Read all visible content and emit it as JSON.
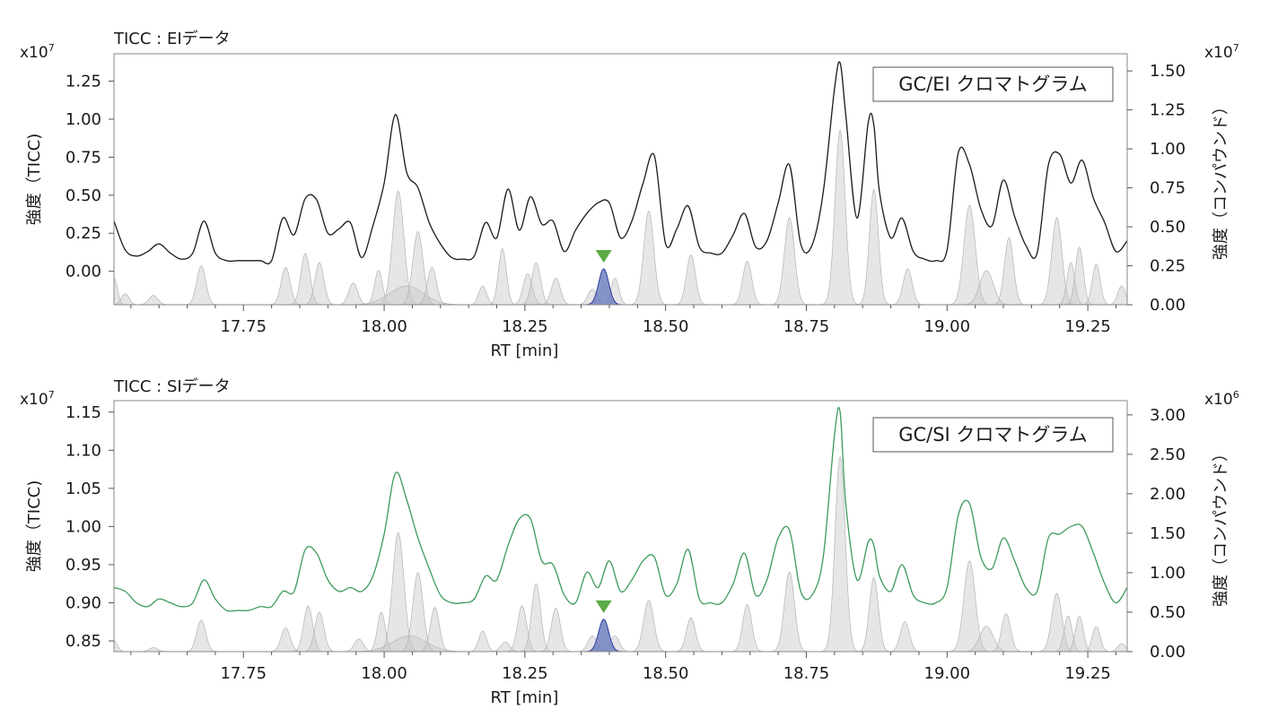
{
  "chart_data": [
    {
      "type": "line",
      "header_label": "TICC : EIデータ",
      "title": "GC/EI クロマトグラム",
      "xlabel": "RT [min]",
      "ylabel_left": "強度（TICC)",
      "ylabel_right": "強度（コンパウンド）",
      "y_left_exponent": "x10",
      "y_left_exponent_power": "7",
      "y_right_exponent": "x10",
      "y_right_exponent_power": "7",
      "xlim": [
        17.52,
        19.32
      ],
      "ylim_left": [
        -0.22,
        1.43
      ],
      "ylim_right": [
        0.0,
        1.61
      ],
      "x_ticks": [
        17.75,
        18.0,
        18.25,
        18.5,
        18.75,
        19.0,
        19.25
      ],
      "x_tick_labels": [
        "17.75",
        "18.00",
        "18.25",
        "18.50",
        "18.75",
        "19.00",
        "19.25"
      ],
      "y_left_ticks": [
        0.0,
        0.25,
        0.5,
        0.75,
        1.0,
        1.25
      ],
      "y_left_tick_labels": [
        "0.00",
        "0.25",
        "0.50",
        "0.75",
        "1.00",
        "1.25"
      ],
      "y_right_ticks": [
        0.0,
        0.25,
        0.5,
        0.75,
        1.0,
        1.25,
        1.5
      ],
      "y_right_tick_labels": [
        "0.00",
        "0.25",
        "0.50",
        "0.75",
        "1.00",
        "1.25",
        "1.50"
      ],
      "marker_rt": 18.39,
      "colors": {
        "ticc": "#1a1a1a",
        "compound": "#c8c8c8",
        "highlight": "#7080c0",
        "marker": "#5aaa46"
      },
      "ticc_series": {
        "x": [
          17.52,
          17.54,
          17.56,
          17.58,
          17.6,
          17.62,
          17.64,
          17.66,
          17.68,
          17.7,
          17.72,
          17.74,
          17.76,
          17.78,
          17.8,
          17.82,
          17.84,
          17.86,
          17.88,
          17.9,
          17.92,
          17.94,
          17.96,
          17.98,
          18.0,
          18.02,
          18.04,
          18.06,
          18.08,
          18.1,
          18.12,
          18.14,
          18.16,
          18.18,
          18.2,
          18.22,
          18.24,
          18.26,
          18.28,
          18.3,
          18.32,
          18.34,
          18.36,
          18.38,
          18.4,
          18.42,
          18.44,
          18.46,
          18.48,
          18.5,
          18.52,
          18.54,
          18.56,
          18.58,
          18.6,
          18.62,
          18.64,
          18.66,
          18.68,
          18.7,
          18.72,
          18.74,
          18.76,
          18.78,
          18.8,
          18.81,
          18.82,
          18.84,
          18.86,
          18.87,
          18.88,
          18.9,
          18.92,
          18.94,
          18.96,
          18.98,
          19.0,
          19.02,
          19.04,
          19.06,
          19.08,
          19.1,
          19.12,
          19.14,
          19.16,
          19.18,
          19.2,
          19.22,
          19.24,
          19.26,
          19.28,
          19.3,
          19.32
        ],
        "y": [
          0.33,
          0.14,
          0.1,
          0.13,
          0.18,
          0.12,
          0.08,
          0.12,
          0.33,
          0.12,
          0.07,
          0.07,
          0.07,
          0.07,
          0.07,
          0.35,
          0.24,
          0.48,
          0.47,
          0.25,
          0.28,
          0.32,
          0.09,
          0.3,
          0.58,
          1.03,
          0.65,
          0.55,
          0.32,
          0.18,
          0.09,
          0.08,
          0.1,
          0.32,
          0.22,
          0.54,
          0.27,
          0.49,
          0.31,
          0.33,
          0.13,
          0.27,
          0.38,
          0.45,
          0.45,
          0.22,
          0.33,
          0.58,
          0.76,
          0.18,
          0.28,
          0.43,
          0.16,
          0.12,
          0.12,
          0.24,
          0.38,
          0.16,
          0.2,
          0.45,
          0.7,
          0.18,
          0.17,
          0.52,
          1.2,
          1.37,
          1.03,
          0.35,
          0.98,
          0.96,
          0.52,
          0.22,
          0.35,
          0.13,
          0.08,
          0.07,
          0.14,
          0.78,
          0.7,
          0.41,
          0.3,
          0.6,
          0.36,
          0.17,
          0.12,
          0.7,
          0.77,
          0.58,
          0.73,
          0.48,
          0.32,
          0.13,
          0.2
        ]
      },
      "compound_peaks": [
        {
          "rt": 17.52,
          "height": 0.17,
          "width": 0.006
        },
        {
          "rt": 17.54,
          "height": 0.07,
          "width": 0.007
        },
        {
          "rt": 17.59,
          "height": 0.06,
          "width": 0.008
        },
        {
          "rt": 17.675,
          "height": 0.25,
          "width": 0.008
        },
        {
          "rt": 17.825,
          "height": 0.24,
          "width": 0.008
        },
        {
          "rt": 17.86,
          "height": 0.33,
          "width": 0.008
        },
        {
          "rt": 17.885,
          "height": 0.27,
          "width": 0.008
        },
        {
          "rt": 17.945,
          "height": 0.14,
          "width": 0.008
        },
        {
          "rt": 17.99,
          "height": 0.22,
          "width": 0.007
        },
        {
          "rt": 18.025,
          "height": 0.73,
          "width": 0.01
        },
        {
          "rt": 18.04,
          "height": 0.12,
          "width": 0.03
        },
        {
          "rt": 18.06,
          "height": 0.47,
          "width": 0.009
        },
        {
          "rt": 18.085,
          "height": 0.24,
          "width": 0.008
        },
        {
          "rt": 18.175,
          "height": 0.12,
          "width": 0.007
        },
        {
          "rt": 18.21,
          "height": 0.36,
          "width": 0.007
        },
        {
          "rt": 18.255,
          "height": 0.2,
          "width": 0.008
        },
        {
          "rt": 18.27,
          "height": 0.27,
          "width": 0.008
        },
        {
          "rt": 18.305,
          "height": 0.17,
          "width": 0.008
        },
        {
          "rt": 18.37,
          "height": 0.1,
          "width": 0.008
        },
        {
          "rt": 18.39,
          "height": 0.23,
          "width": 0.009,
          "highlight": true
        },
        {
          "rt": 18.41,
          "height": 0.17,
          "width": 0.007
        },
        {
          "rt": 18.47,
          "height": 0.6,
          "width": 0.009
        },
        {
          "rt": 18.545,
          "height": 0.32,
          "width": 0.008
        },
        {
          "rt": 18.645,
          "height": 0.28,
          "width": 0.008
        },
        {
          "rt": 18.72,
          "height": 0.56,
          "width": 0.009
        },
        {
          "rt": 18.81,
          "height": 1.12,
          "width": 0.009
        },
        {
          "rt": 18.87,
          "height": 0.74,
          "width": 0.008
        },
        {
          "rt": 18.93,
          "height": 0.23,
          "width": 0.008
        },
        {
          "rt": 19.04,
          "height": 0.64,
          "width": 0.01
        },
        {
          "rt": 19.07,
          "height": 0.22,
          "width": 0.012
        },
        {
          "rt": 19.11,
          "height": 0.43,
          "width": 0.008
        },
        {
          "rt": 19.195,
          "height": 0.56,
          "width": 0.009
        },
        {
          "rt": 19.22,
          "height": 0.27,
          "width": 0.007
        },
        {
          "rt": 19.235,
          "height": 0.37,
          "width": 0.007
        },
        {
          "rt": 19.265,
          "height": 0.26,
          "width": 0.007
        },
        {
          "rt": 19.31,
          "height": 0.12,
          "width": 0.007
        }
      ]
    },
    {
      "type": "line",
      "header_label": "TICC : SIデータ",
      "title": "GC/SI クロマトグラム",
      "xlabel": "RT [min]",
      "ylabel_left": "強度（TICC)",
      "ylabel_right": "強度（コンパウンド）",
      "y_left_exponent": "x10",
      "y_left_exponent_power": "7",
      "y_right_exponent": "x10",
      "y_right_exponent_power": "6",
      "xlim": [
        17.52,
        19.32
      ],
      "ylim_left": [
        0.836,
        1.165
      ],
      "ylim_right": [
        0.0,
        3.18
      ],
      "x_ticks": [
        17.75,
        18.0,
        18.25,
        18.5,
        18.75,
        19.0,
        19.25
      ],
      "x_tick_labels": [
        "17.75",
        "18.00",
        "18.25",
        "18.50",
        "18.75",
        "19.00",
        "19.25"
      ],
      "y_left_ticks": [
        0.85,
        0.9,
        0.95,
        1.0,
        1.05,
        1.1,
        1.15
      ],
      "y_left_tick_labels": [
        "0.85",
        "0.90",
        "0.95",
        "1.00",
        "1.05",
        "1.10",
        "1.15"
      ],
      "y_right_ticks": [
        0.0,
        0.5,
        1.0,
        1.5,
        2.0,
        2.5,
        3.0
      ],
      "y_right_tick_labels": [
        "0.00",
        "0.50",
        "1.00",
        "1.50",
        "2.00",
        "2.50",
        "3.00"
      ],
      "marker_rt": 18.39,
      "colors": {
        "ticc": "#3d9a5c",
        "compound": "#c8c8c8",
        "highlight": "#7080c0",
        "marker": "#5aaa46"
      },
      "ticc_series": {
        "x": [
          17.52,
          17.54,
          17.56,
          17.58,
          17.6,
          17.62,
          17.64,
          17.66,
          17.68,
          17.7,
          17.72,
          17.74,
          17.76,
          17.78,
          17.8,
          17.82,
          17.84,
          17.86,
          17.88,
          17.9,
          17.92,
          17.94,
          17.96,
          17.98,
          18.0,
          18.02,
          18.04,
          18.06,
          18.08,
          18.1,
          18.12,
          18.14,
          18.16,
          18.18,
          18.2,
          18.22,
          18.24,
          18.26,
          18.28,
          18.3,
          18.32,
          18.34,
          18.36,
          18.38,
          18.4,
          18.42,
          18.44,
          18.46,
          18.48,
          18.5,
          18.52,
          18.54,
          18.56,
          18.58,
          18.6,
          18.62,
          18.64,
          18.66,
          18.68,
          18.7,
          18.72,
          18.74,
          18.76,
          18.78,
          18.8,
          18.81,
          18.82,
          18.84,
          18.86,
          18.87,
          18.88,
          18.9,
          18.92,
          18.94,
          18.96,
          18.98,
          19.0,
          19.02,
          19.04,
          19.06,
          19.08,
          19.1,
          19.12,
          19.14,
          19.16,
          19.18,
          19.2,
          19.22,
          19.24,
          19.26,
          19.28,
          19.3,
          19.32
        ],
        "y": [
          0.92,
          0.915,
          0.9,
          0.895,
          0.905,
          0.9,
          0.895,
          0.9,
          0.93,
          0.905,
          0.89,
          0.89,
          0.89,
          0.895,
          0.895,
          0.915,
          0.915,
          0.97,
          0.965,
          0.93,
          0.915,
          0.92,
          0.915,
          0.935,
          0.99,
          1.07,
          1.035,
          0.985,
          0.945,
          0.91,
          0.9,
          0.9,
          0.905,
          0.935,
          0.93,
          0.975,
          1.01,
          1.01,
          0.955,
          0.95,
          0.91,
          0.9,
          0.94,
          0.92,
          0.955,
          0.915,
          0.93,
          0.955,
          0.96,
          0.91,
          0.925,
          0.97,
          0.905,
          0.9,
          0.9,
          0.925,
          0.965,
          0.91,
          0.93,
          0.985,
          0.995,
          0.915,
          0.91,
          0.96,
          1.12,
          1.15,
          1.03,
          0.93,
          0.98,
          0.975,
          0.935,
          0.915,
          0.95,
          0.91,
          0.9,
          0.9,
          0.92,
          1.015,
          1.03,
          0.96,
          0.945,
          0.985,
          0.955,
          0.92,
          0.915,
          0.985,
          0.99,
          1.0,
          1.0,
          0.965,
          0.925,
          0.9,
          0.92
        ]
      },
      "compound_peaks": [
        {
          "rt": 17.52,
          "height": 0.14,
          "width": 0.006
        },
        {
          "rt": 17.59,
          "height": 0.05,
          "width": 0.008
        },
        {
          "rt": 17.675,
          "height": 0.4,
          "width": 0.008
        },
        {
          "rt": 17.825,
          "height": 0.3,
          "width": 0.008
        },
        {
          "rt": 17.865,
          "height": 0.58,
          "width": 0.008
        },
        {
          "rt": 17.885,
          "height": 0.5,
          "width": 0.008
        },
        {
          "rt": 17.955,
          "height": 0.16,
          "width": 0.008
        },
        {
          "rt": 17.995,
          "height": 0.5,
          "width": 0.007
        },
        {
          "rt": 18.025,
          "height": 1.51,
          "width": 0.01
        },
        {
          "rt": 18.045,
          "height": 0.2,
          "width": 0.03
        },
        {
          "rt": 18.06,
          "height": 1.0,
          "width": 0.009
        },
        {
          "rt": 18.09,
          "height": 0.56,
          "width": 0.008
        },
        {
          "rt": 18.175,
          "height": 0.26,
          "width": 0.007
        },
        {
          "rt": 18.215,
          "height": 0.12,
          "width": 0.008
        },
        {
          "rt": 18.245,
          "height": 0.58,
          "width": 0.008
        },
        {
          "rt": 18.27,
          "height": 0.86,
          "width": 0.008
        },
        {
          "rt": 18.305,
          "height": 0.55,
          "width": 0.008
        },
        {
          "rt": 18.37,
          "height": 0.2,
          "width": 0.008
        },
        {
          "rt": 18.39,
          "height": 0.41,
          "width": 0.009,
          "highlight": true
        },
        {
          "rt": 18.41,
          "height": 0.2,
          "width": 0.008
        },
        {
          "rt": 18.47,
          "height": 0.65,
          "width": 0.009
        },
        {
          "rt": 18.545,
          "height": 0.43,
          "width": 0.008
        },
        {
          "rt": 18.645,
          "height": 0.6,
          "width": 0.008
        },
        {
          "rt": 18.72,
          "height": 1.01,
          "width": 0.009
        },
        {
          "rt": 18.81,
          "height": 2.47,
          "width": 0.009
        },
        {
          "rt": 18.87,
          "height": 0.94,
          "width": 0.008
        },
        {
          "rt": 18.925,
          "height": 0.38,
          "width": 0.008
        },
        {
          "rt": 19.04,
          "height": 1.15,
          "width": 0.01
        },
        {
          "rt": 19.07,
          "height": 0.32,
          "width": 0.012
        },
        {
          "rt": 19.105,
          "height": 0.48,
          "width": 0.008
        },
        {
          "rt": 19.195,
          "height": 0.74,
          "width": 0.009
        },
        {
          "rt": 19.215,
          "height": 0.45,
          "width": 0.007
        },
        {
          "rt": 19.235,
          "height": 0.45,
          "width": 0.007
        },
        {
          "rt": 19.265,
          "height": 0.32,
          "width": 0.007
        },
        {
          "rt": 19.31,
          "height": 0.1,
          "width": 0.007
        }
      ]
    }
  ]
}
